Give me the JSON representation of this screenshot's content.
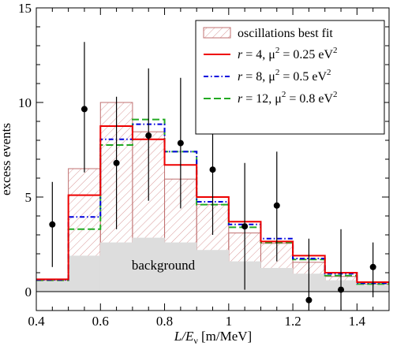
{
  "chart_data": {
    "type": "histogram",
    "xlabel_main": "L/E",
    "xlabel_sub": "ν",
    "xlabel_unit": " [m/MeV]",
    "ylabel": "excess events",
    "xlim": [
      0.4,
      1.5
    ],
    "ylim": [
      -1,
      15
    ],
    "x_ticks": [
      0.4,
      0.6,
      0.8,
      1.0,
      1.2,
      1.4
    ],
    "x_tick_labels": [
      "0.4",
      "0.6",
      "0.8",
      "1",
      "1.2",
      "1.4"
    ],
    "y_ticks": [
      0,
      5,
      10,
      15
    ],
    "y_tick_labels": [
      "0",
      "5",
      "10",
      "15"
    ],
    "bin_edges": [
      0.4,
      0.5,
      0.6,
      0.7,
      0.8,
      0.9,
      1.0,
      1.1,
      1.2,
      1.3,
      1.4,
      1.5
    ],
    "background": [
      0.6,
      1.9,
      2.6,
      2.85,
      2.6,
      2.2,
      1.6,
      1.25,
      0.95,
      0.6,
      0.35
    ],
    "best_fit": [
      0.6,
      6.5,
      10.0,
      8.45,
      5.95,
      4.6,
      3.1,
      2.55,
      1.55,
      0.8,
      0.4
    ],
    "series": [
      {
        "name": "r = 4, μ² = 0.25 eV²",
        "r": "4",
        "mu2": "0.25",
        "color": "#ee0000",
        "dash": "solid",
        "values": [
          0.65,
          5.1,
          8.75,
          8.05,
          6.7,
          5.0,
          3.7,
          2.65,
          1.9,
          1.0,
          0.5
        ]
      },
      {
        "name": "r = 8, μ² = 0.5 eV²",
        "r": "8",
        "mu2": "0.5",
        "color": "#0000dd",
        "dash": "dashdot",
        "values": [
          0.62,
          3.95,
          8.05,
          8.85,
          7.4,
          4.75,
          3.55,
          2.8,
          1.75,
          0.95,
          0.45
        ]
      },
      {
        "name": "r = 12, μ² = 0.8 eV²",
        "r": "12",
        "mu2": "0.8",
        "color": "#22aa22",
        "dash": "dashed",
        "values": [
          0.6,
          3.3,
          7.75,
          9.1,
          7.4,
          4.6,
          3.4,
          2.6,
          1.7,
          0.85,
          0.4
        ]
      }
    ],
    "data_points": [
      {
        "x": 0.45,
        "y": 3.55,
        "lo": 1.3,
        "hi": 5.8
      },
      {
        "x": 0.55,
        "y": 9.65,
        "lo": 6.3,
        "hi": 13.2
      },
      {
        "x": 0.65,
        "y": 6.8,
        "lo": 3.3,
        "hi": 10.3
      },
      {
        "x": 0.75,
        "y": 8.25,
        "lo": 4.8,
        "hi": 11.8
      },
      {
        "x": 0.85,
        "y": 7.85,
        "lo": 4.4,
        "hi": 11.3
      },
      {
        "x": 0.95,
        "y": 6.45,
        "lo": 3.0,
        "hi": 9.9
      },
      {
        "x": 1.05,
        "y": 3.45,
        "lo": 0.1,
        "hi": 6.8
      },
      {
        "x": 1.15,
        "y": 4.55,
        "lo": 1.6,
        "hi": 7.4
      },
      {
        "x": 1.25,
        "y": -0.45,
        "lo": -1.0,
        "hi": 2.8
      },
      {
        "x": 1.35,
        "y": 0.1,
        "lo": -1.0,
        "hi": 3.3
      },
      {
        "x": 1.45,
        "y": 1.3,
        "lo": -0.3,
        "hi": 2.6
      }
    ],
    "legend": {
      "position": "top-right",
      "best_fit_label": "oscillations best fit",
      "r_symbol": "r",
      "mu_symbol": "μ",
      "eq": " = ",
      "unit": " eV"
    },
    "annotation": "background",
    "colors": {
      "background_fill": "#dddddd",
      "best_fit_edge": "#c07070",
      "hatch": "#d08080"
    }
  }
}
